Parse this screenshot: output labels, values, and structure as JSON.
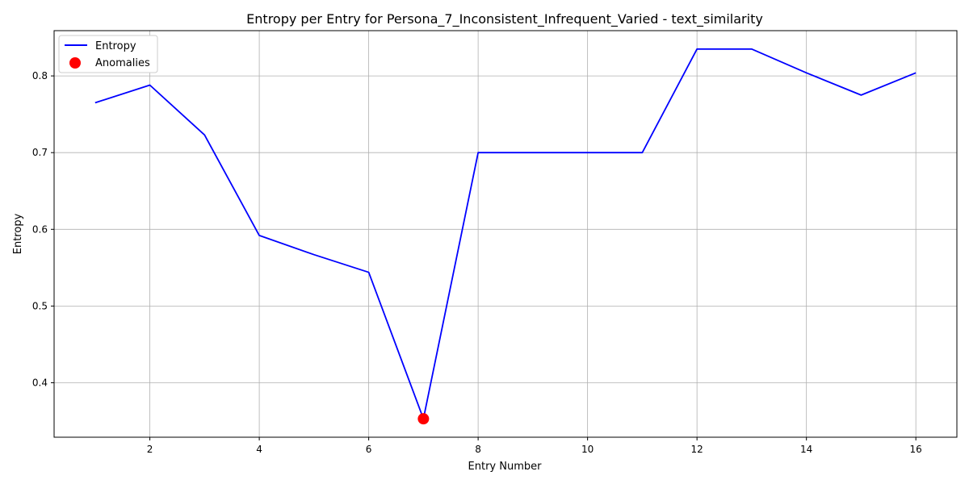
{
  "chart_data": {
    "type": "line",
    "title": "Entropy per Entry for Persona_7_Inconsistent_Infrequent_Varied - text_similarity",
    "xlabel": "Entry Number",
    "ylabel": "Entropy",
    "xlim": [
      0.25,
      16.75
    ],
    "ylim": [
      0.329,
      0.859
    ],
    "xticks": [
      2,
      4,
      6,
      8,
      10,
      12,
      14,
      16
    ],
    "yticks": [
      0.4,
      0.5,
      0.6,
      0.7,
      0.8
    ],
    "grid": true,
    "legend_position": "top-left",
    "series": [
      {
        "name": "Entropy",
        "kind": "line",
        "color": "#0000ff",
        "x": [
          1,
          2,
          3,
          4,
          5,
          6,
          7,
          8,
          9,
          10,
          11,
          12,
          13,
          14,
          15,
          16
        ],
        "y": [
          0.765,
          0.788,
          0.723,
          0.592,
          0.567,
          0.544,
          0.353,
          0.7,
          0.7,
          0.7,
          0.7,
          0.835,
          0.835,
          0.804,
          0.775,
          0.804
        ]
      },
      {
        "name": "Anomalies",
        "kind": "scatter",
        "color": "#ff0000",
        "x": [
          7
        ],
        "y": [
          0.353
        ]
      }
    ]
  }
}
